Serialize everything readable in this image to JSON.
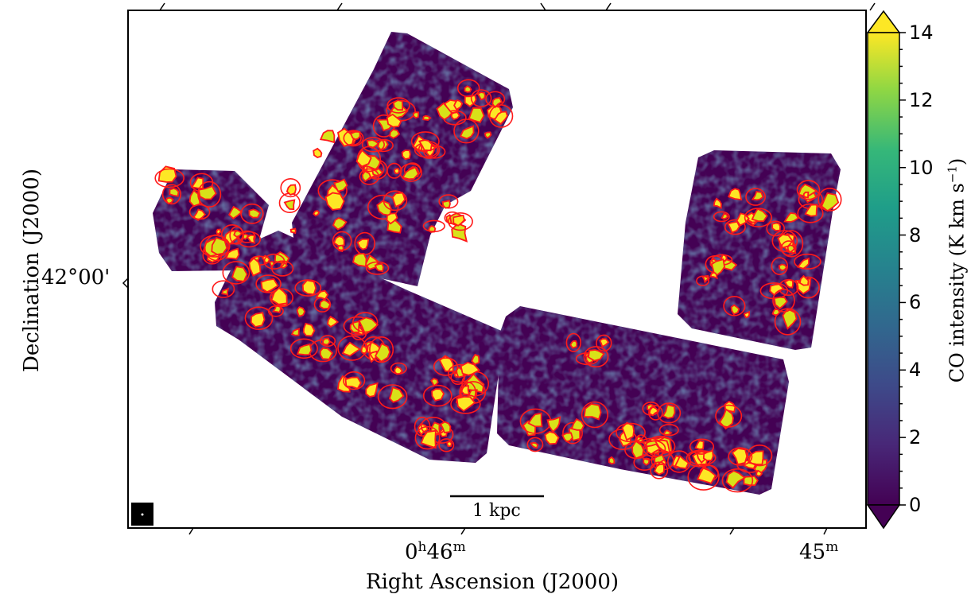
{
  "figure": {
    "colors": {
      "background": "#440154",
      "map_low": "#3b1f6e",
      "map_mid": "#2a788e",
      "map_high": "#fde725",
      "contour_red": "#ff1a1a",
      "contour_yellow": "#d8e219"
    }
  },
  "axes": {
    "xlabel": "Right Ascension (J2000)",
    "ylabel": "Declination (J2000)",
    "x_ticks": [
      {
        "label_main": "0",
        "label_h": "h",
        "label_num": "46",
        "label_m": "m"
      },
      {
        "label_main": "45",
        "label_h": "",
        "label_num": "",
        "label_m": "m"
      }
    ],
    "y_ticks": [
      {
        "label": "42°00'"
      }
    ]
  },
  "scalebar": {
    "label": "1 kpc"
  },
  "colorbar": {
    "label_main": "CO intensity (K km s",
    "label_sup": "−1",
    "label_end": ")",
    "ticks": [
      "0",
      "2",
      "4",
      "6",
      "8",
      "10",
      "12",
      "14"
    ],
    "range": [
      0,
      14
    ],
    "colormap": "viridis",
    "extend": "both"
  }
}
